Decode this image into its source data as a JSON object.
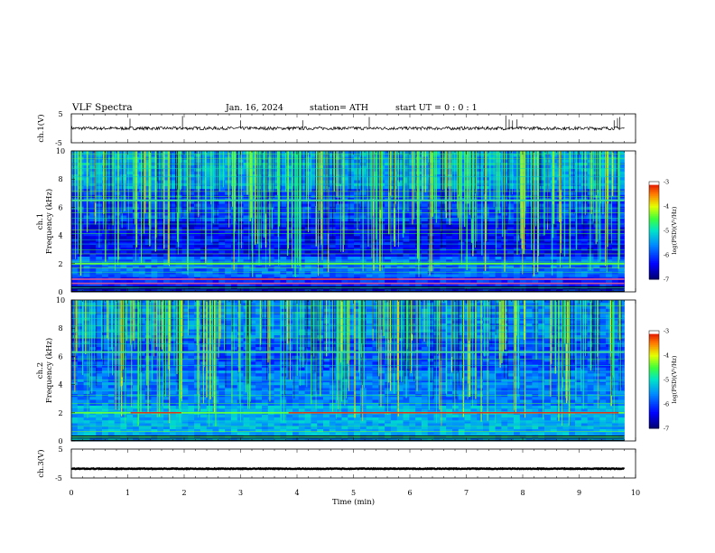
{
  "header": {
    "title": "VLF  Spectra",
    "date": "Jan. 16, 2024",
    "station": "station= ATH",
    "start_ut": "start  UT =   0 : 0  : 1"
  },
  "chart_data": [
    {
      "type": "line",
      "panel": "ch1-waveform",
      "ylabel": "ch.1(V)",
      "ylim": [
        -5,
        5
      ],
      "y_ticks": [
        "5",
        "-5"
      ],
      "description_values": {
        "baseline_v": 0,
        "spike_max_v": 4.5
      }
    },
    {
      "type": "heatmap",
      "panel": "ch1-spectrogram",
      "ylabel_top": "ch.1",
      "ylabel": "Frequency  (kHz)",
      "ylim": [
        0,
        10
      ],
      "y_ticks": [
        "0",
        "2",
        "4",
        "6",
        "8",
        "10"
      ],
      "colorbar": {
        "label": "log(PSD)(V²/Hz)",
        "range": [
          -7,
          -3
        ],
        "ticks": [
          "-3",
          "-4",
          "-5",
          "-6",
          "-7"
        ]
      },
      "strong_bands_khz": [
        0.6,
        0.9,
        2.0,
        6.5
      ]
    },
    {
      "type": "heatmap",
      "panel": "ch2-spectrogram",
      "ylabel_top": "ch.2",
      "ylabel": "Frequency  (kHz)",
      "ylim": [
        0,
        10
      ],
      "y_ticks": [
        "0",
        "2",
        "4",
        "6",
        "8",
        "10"
      ],
      "colorbar": {
        "label": "log(PSD)(V²/Hz)",
        "range": [
          -7,
          -3
        ],
        "ticks": [
          "-3",
          "-4",
          "-5",
          "-6",
          "-7"
        ]
      },
      "strong_bands_khz": [
        2.0,
        6.3
      ]
    },
    {
      "type": "line",
      "panel": "ch3-waveform",
      "ylabel": "ch.3(V)",
      "ylim": [
        -5,
        5
      ],
      "y_ticks": [
        "5",
        "-5"
      ],
      "description_values": {
        "baseline_v": -1.8
      }
    }
  ],
  "x_axis": {
    "label": "Time  (min)",
    "range": [
      0,
      10
    ],
    "ticks": [
      "0",
      "1",
      "2",
      "3",
      "4",
      "5",
      "6",
      "7",
      "8",
      "9",
      "10"
    ],
    "data_end_min": 9.8
  }
}
